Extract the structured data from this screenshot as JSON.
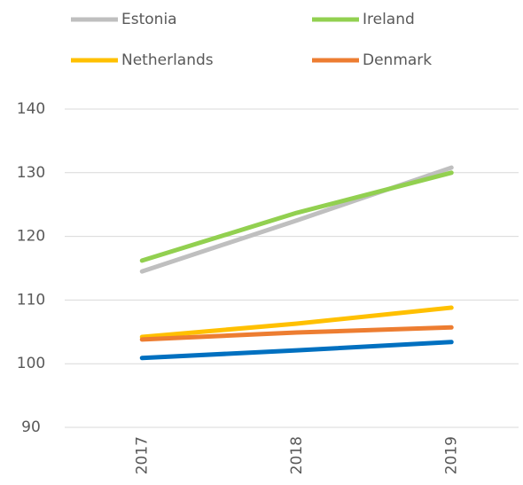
{
  "chart_data": {
    "type": "line",
    "categories": [
      "2017",
      "2018",
      "2019"
    ],
    "series": [
      {
        "name": "Estonia",
        "color": "#bfbfbf",
        "values": [
          114.5,
          122.5,
          130.8
        ]
      },
      {
        "name": "Ireland",
        "color": "#92d050",
        "values": [
          116.2,
          123.7,
          130.0
        ]
      },
      {
        "name": "Netherlands",
        "color": "#ffc000",
        "values": [
          104.2,
          106.3,
          108.8
        ]
      },
      {
        "name": "Denmark",
        "color": "#ed7d31",
        "values": [
          103.8,
          104.9,
          105.7
        ]
      },
      {
        "color": "#0070c0",
        "values": [
          100.9,
          102.1,
          103.4
        ]
      }
    ],
    "ylim": [
      90,
      140
    ],
    "yticks": [
      90,
      100,
      110,
      120,
      130,
      140
    ],
    "grid": true,
    "legend": "top"
  }
}
